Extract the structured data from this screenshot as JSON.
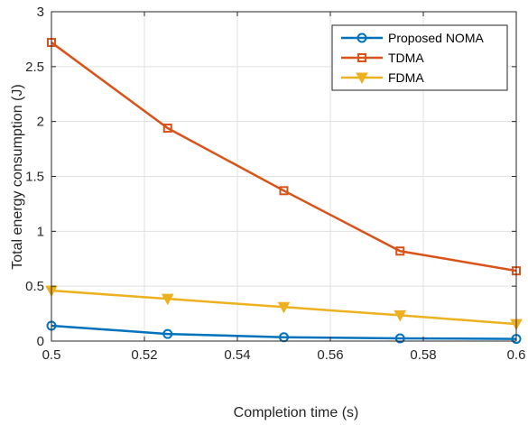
{
  "chart_data": {
    "type": "line",
    "title": "",
    "xlabel": "Completion time (s)",
    "ylabel": "Total energy consumption (J)",
    "xlim": [
      0.5,
      0.6
    ],
    "ylim": [
      0,
      3
    ],
    "x": [
      0.5,
      0.525,
      0.55,
      0.575,
      0.6
    ],
    "xticks": [
      "0.5",
      "0.52",
      "0.54",
      "0.56",
      "0.58",
      "0.6"
    ],
    "yticks": [
      "0",
      "0.5",
      "1",
      "1.5",
      "2",
      "2.5",
      "3"
    ],
    "grid": true,
    "legend": "top-right",
    "series": [
      {
        "name": "Proposed NOMA",
        "values": [
          0.14,
          0.065,
          0.035,
          0.025,
          0.02
        ],
        "color": "#0072BD",
        "marker": "circle"
      },
      {
        "name": "TDMA",
        "values": [
          2.72,
          1.94,
          1.37,
          0.82,
          0.64
        ],
        "color": "#D95319",
        "marker": "square"
      },
      {
        "name": "FDMA",
        "values": [
          0.46,
          0.385,
          0.31,
          0.235,
          0.155
        ],
        "color": "#EDB120",
        "marker": "triangle-down"
      }
    ]
  }
}
